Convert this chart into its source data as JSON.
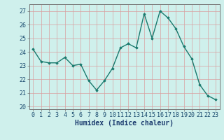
{
  "x": [
    0,
    1,
    2,
    3,
    4,
    5,
    6,
    7,
    8,
    9,
    10,
    11,
    12,
    13,
    14,
    15,
    16,
    17,
    18,
    19,
    20,
    21,
    22,
    23
  ],
  "y": [
    24.2,
    23.3,
    23.2,
    23.2,
    23.6,
    23.0,
    23.1,
    21.9,
    21.2,
    21.9,
    22.8,
    24.3,
    24.6,
    24.3,
    26.8,
    25.0,
    27.0,
    26.5,
    25.7,
    24.4,
    23.5,
    21.6,
    20.8,
    20.5
  ],
  "line_color": "#1a7a6e",
  "marker": "D",
  "markersize": 1.8,
  "linewidth": 1.0,
  "xlabel": "Humidex (Indice chaleur)",
  "xlabel_fontsize": 7,
  "tick_fontsize": 6,
  "ylim": [
    19.8,
    27.5
  ],
  "yticks": [
    20,
    21,
    22,
    23,
    24,
    25,
    26,
    27
  ],
  "xticks": [
    0,
    1,
    2,
    3,
    4,
    5,
    6,
    7,
    8,
    9,
    10,
    11,
    12,
    13,
    14,
    15,
    16,
    17,
    18,
    19,
    20,
    21,
    22,
    23
  ],
  "bg_color": "#cff0ec",
  "grid_color": "#b0b0b0",
  "grid_color2": "#d8a0a0"
}
